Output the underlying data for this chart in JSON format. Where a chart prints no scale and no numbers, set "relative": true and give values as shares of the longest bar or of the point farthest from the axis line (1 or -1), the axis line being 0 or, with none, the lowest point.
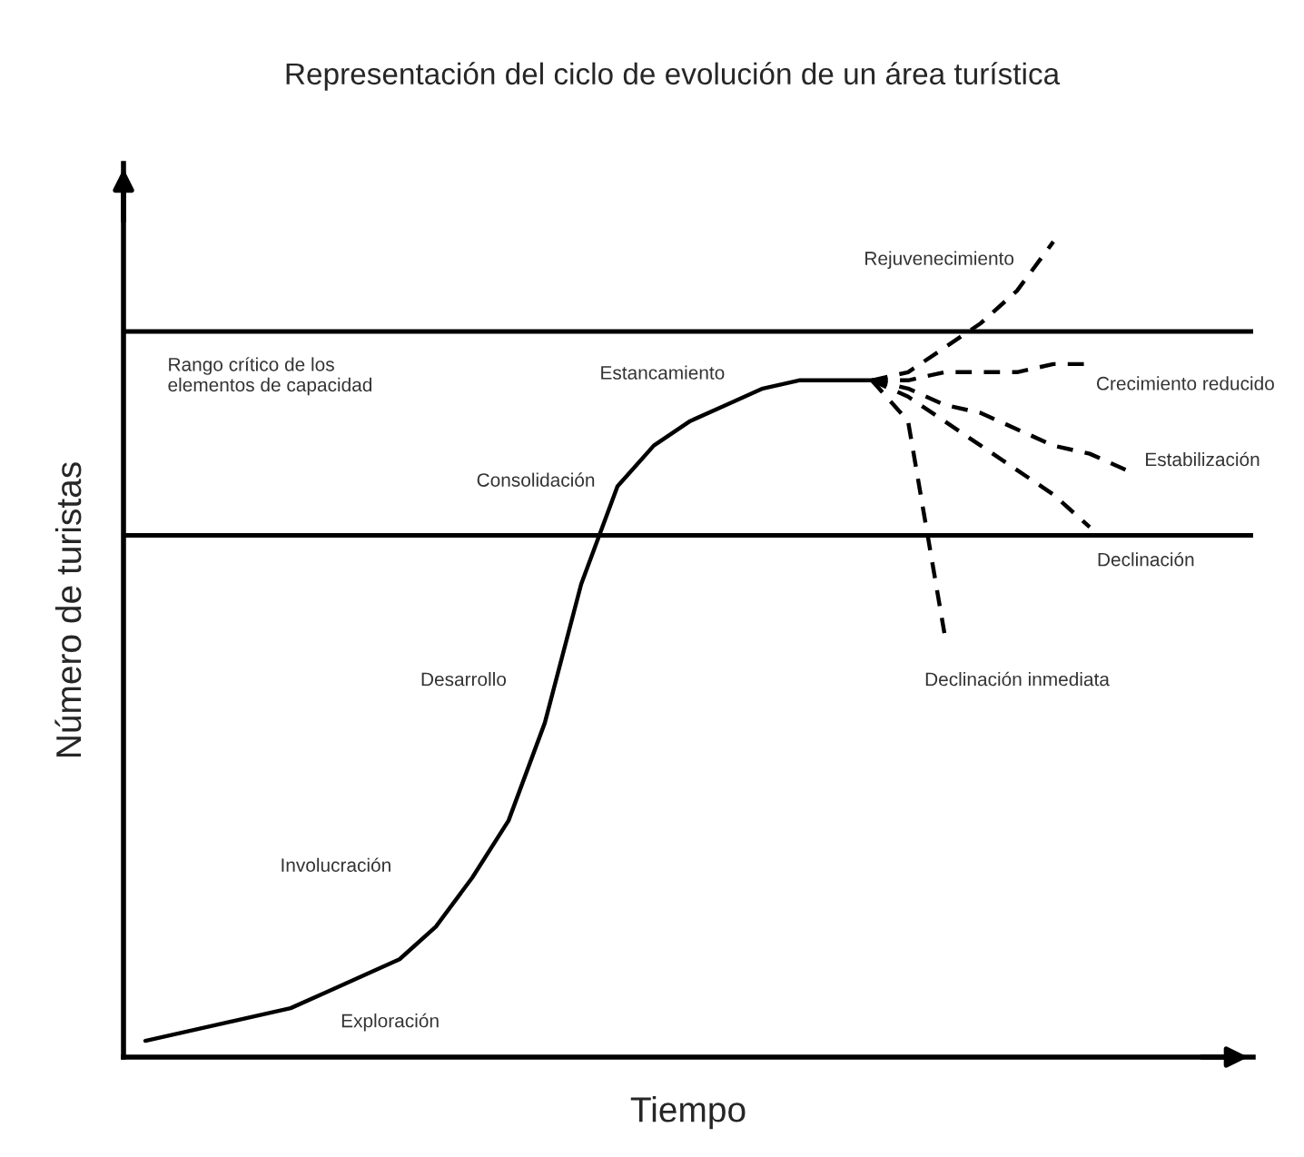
{
  "chart_data": {
    "type": "line",
    "relative": true,
    "legend": false,
    "title": "Representación del ciclo de evolución de un área turística",
    "xlabel": "Tiempo",
    "ylabel": "Número de turistas",
    "categories": [
      null,
      null,
      null,
      null,
      null,
      null,
      null,
      null,
      null,
      null,
      null,
      null,
      null,
      null,
      null,
      null,
      null,
      null,
      null,
      null,
      null,
      null,
      null,
      null,
      null,
      null,
      null,
      null,
      null,
      null,
      null
    ],
    "series": [
      {
        "color": "#000000",
        "line_style": "solid",
        "values": [
          0.02,
          0.03,
          0.04,
          0.05,
          0.06,
          0.08,
          0.1,
          0.12,
          0.16,
          0.22,
          0.29,
          0.41,
          0.58,
          0.7,
          0.75,
          0.78,
          0.8,
          0.82,
          0.83,
          0.83,
          0.83,
          null,
          null,
          null,
          null,
          null,
          null,
          null,
          null,
          null,
          null
        ]
      },
      {
        "name": "Rejuvenecimiento",
        "color": "#000000",
        "line_style": "dashed",
        "values": [
          null,
          null,
          null,
          null,
          null,
          null,
          null,
          null,
          null,
          null,
          null,
          null,
          null,
          null,
          null,
          null,
          null,
          null,
          null,
          null,
          0.83,
          0.84,
          0.87,
          0.9,
          0.94,
          1.0,
          null,
          null,
          null,
          null,
          null
        ]
      },
      {
        "name": "Crecimiento reducido",
        "color": "#000000",
        "line_style": "dashed",
        "values": [
          null,
          null,
          null,
          null,
          null,
          null,
          null,
          null,
          null,
          null,
          null,
          null,
          null,
          null,
          null,
          null,
          null,
          null,
          null,
          null,
          0.83,
          0.83,
          0.84,
          0.84,
          0.84,
          0.85,
          0.85,
          null,
          null,
          null,
          null
        ]
      },
      {
        "name": "Estabilización",
        "color": "#000000",
        "line_style": "dashed",
        "values": [
          null,
          null,
          null,
          null,
          null,
          null,
          null,
          null,
          null,
          null,
          null,
          null,
          null,
          null,
          null,
          null,
          null,
          null,
          null,
          null,
          0.83,
          0.82,
          0.8,
          0.79,
          0.77,
          0.75,
          0.74,
          0.72,
          null,
          null,
          null
        ]
      },
      {
        "name": "Declinación",
        "color": "#000000",
        "line_style": "dashed",
        "values": [
          null,
          null,
          null,
          null,
          null,
          null,
          null,
          null,
          null,
          null,
          null,
          null,
          null,
          null,
          null,
          null,
          null,
          null,
          null,
          null,
          0.83,
          0.81,
          0.78,
          0.75,
          0.72,
          0.69,
          0.65,
          null,
          null,
          null,
          null
        ]
      },
      {
        "name": "Declinación inmediata",
        "color": "#000000",
        "line_style": "dashed",
        "values": [
          null,
          null,
          null,
          null,
          null,
          null,
          null,
          null,
          null,
          null,
          null,
          null,
          null,
          null,
          null,
          null,
          null,
          null,
          null,
          null,
          0.83,
          0.78,
          0.52,
          null,
          null,
          null,
          null,
          null,
          null,
          null,
          null
        ]
      }
    ],
    "ref_lines": [
      {
        "axis": "y",
        "value": 0.89,
        "color": "#000000"
      },
      {
        "axis": "y",
        "value": 0.64,
        "color": "#000000"
      }
    ],
    "annotations": [
      "Rango crítico de los\nelementos de capacidad",
      "Estancamiento",
      "Consolidación",
      "Desarrollo",
      "Involucración",
      "Exploración"
    ]
  }
}
